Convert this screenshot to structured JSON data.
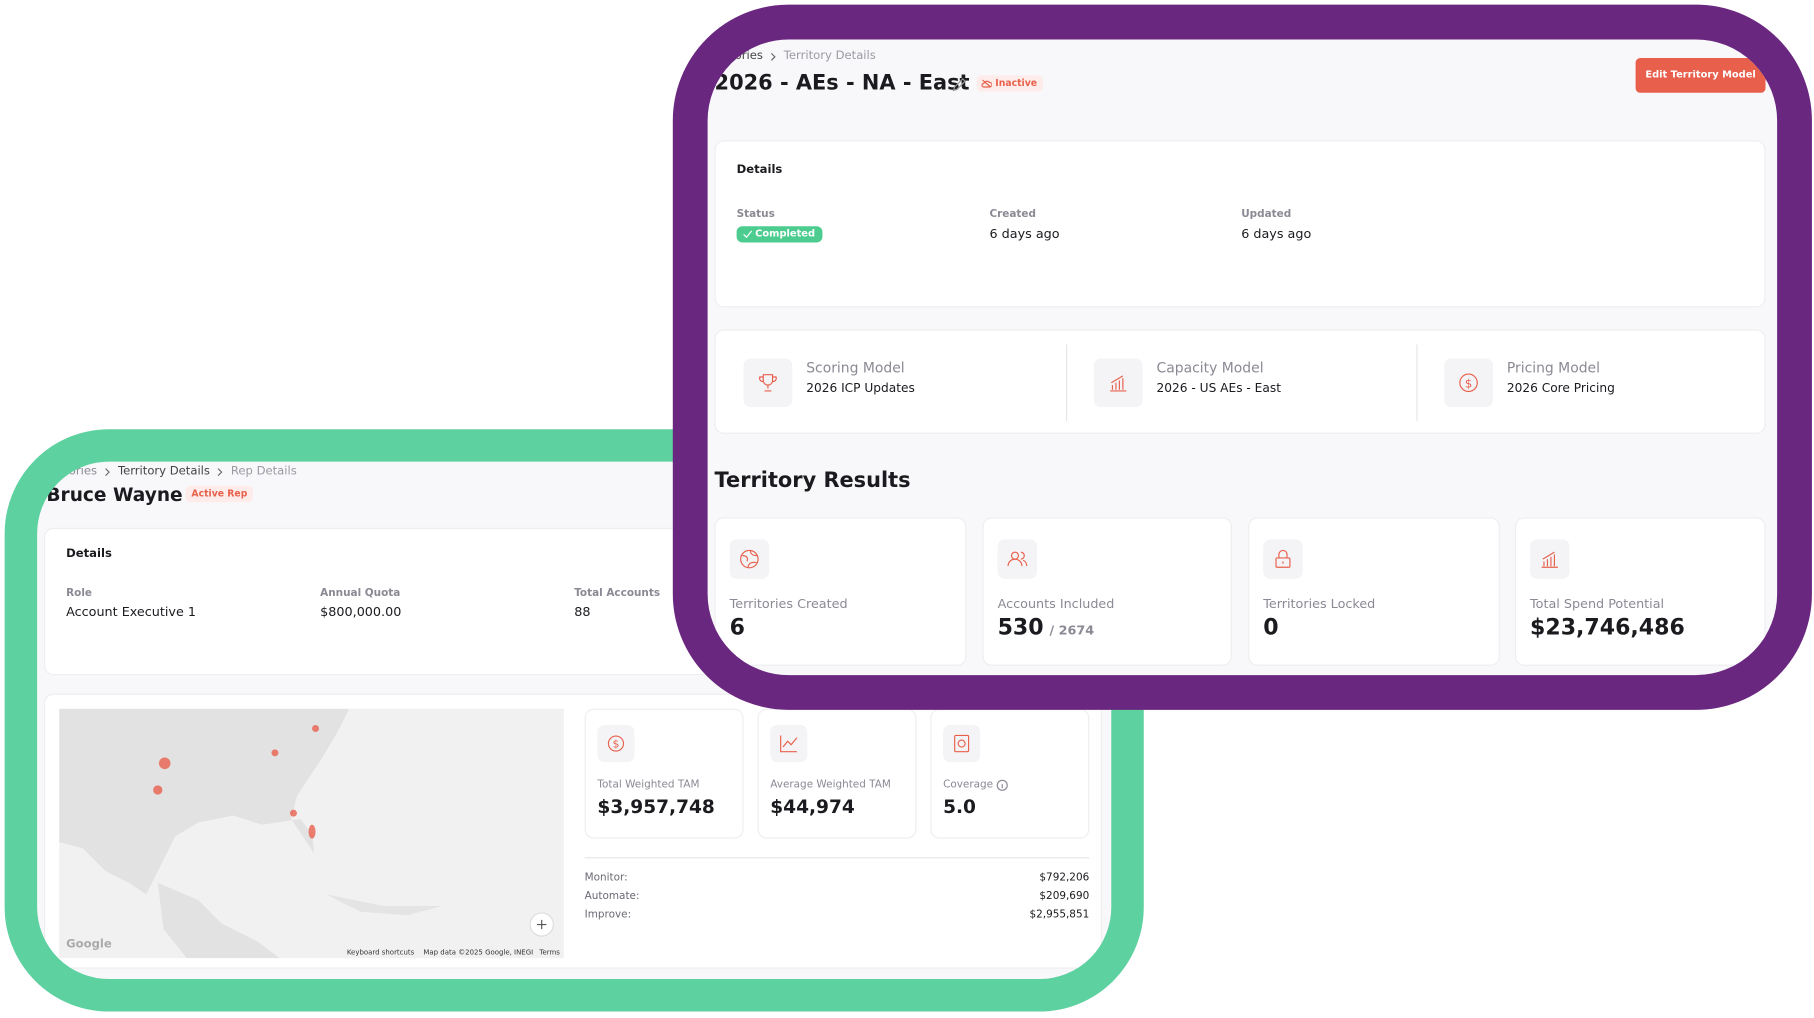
{
  "rep_view": {
    "breadcrumbs": [
      "Territories",
      "Territory Details",
      "Rep Details"
    ],
    "title": "Bruce Wayne",
    "badge": "Active Rep",
    "details": {
      "heading": "Details",
      "fields": [
        {
          "label": "Role",
          "value": "Account Executive 1"
        },
        {
          "label": "Annual Quota",
          "value": "$800,000.00"
        },
        {
          "label": "Total Accounts",
          "value": "88"
        }
      ]
    },
    "map": {
      "logo": "Google",
      "shortcuts": "Keyboard shortcuts",
      "attribution": "Map data ©2025 Google, INEGI",
      "terms": "Terms"
    },
    "metrics": [
      {
        "label": "Total Weighted TAM",
        "value": "$3,957,748"
      },
      {
        "label": "Average Weighted TAM",
        "value": "$44,974"
      },
      {
        "label": "Coverage",
        "value": "5.0"
      }
    ],
    "breakdown": [
      {
        "label": "Monitor:",
        "value": "$792,206"
      },
      {
        "label": "Automate:",
        "value": "$209,690"
      },
      {
        "label": "Improve:",
        "value": "$2,955,851"
      }
    ]
  },
  "territory_view": {
    "breadcrumbs": [
      "Territories",
      "Territory Details"
    ],
    "title": "2026 - AEs - NA - East",
    "badge": "Inactive",
    "button": "Edit Territory Model",
    "details": {
      "heading": "Details",
      "fields": [
        {
          "label": "Status",
          "value": "Completed"
        },
        {
          "label": "Created",
          "value": "6 days ago"
        },
        {
          "label": "Updated",
          "value": "6 days ago"
        }
      ]
    },
    "models": [
      {
        "label": "Scoring Model",
        "value": "2026 ICP Updates"
      },
      {
        "label": "Capacity Model",
        "value": "2026 - US AEs - East"
      },
      {
        "label": "Pricing Model",
        "value": "2026 Core Pricing"
      }
    ],
    "results_heading": "Territory Results",
    "results": [
      {
        "label": "Territories Created",
        "value": "6"
      },
      {
        "label": "Accounts Included",
        "value": "530",
        "total": "/ 2674"
      },
      {
        "label": "Territories Locked",
        "value": "0"
      },
      {
        "label": "Total Spend Potential",
        "value": "$23,746,486"
      }
    ]
  }
}
